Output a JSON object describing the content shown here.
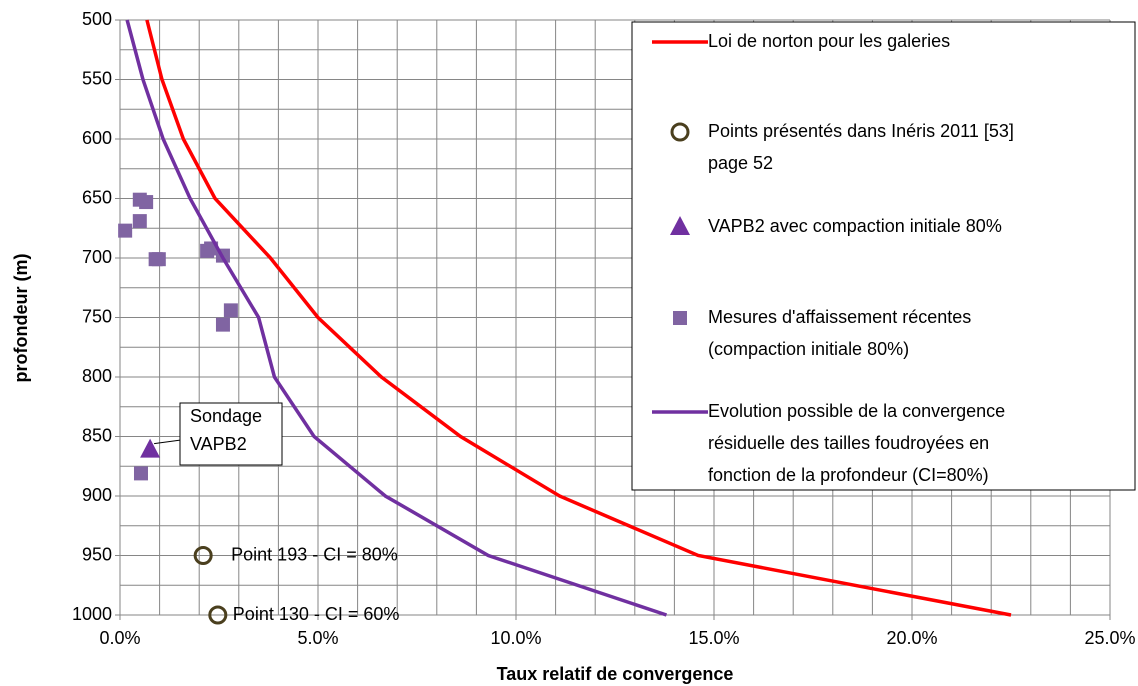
{
  "chart_data": {
    "type": "scatter",
    "xlabel": "Taux relatif de convergence",
    "ylabel": "profondeur (m)",
    "xlim": [
      0,
      25
    ],
    "ylim": [
      500,
      1000
    ],
    "y_inverted": true,
    "xticks": [
      {
        "value": 0,
        "label": "0.0%"
      },
      {
        "value": 5,
        "label": "5.0%"
      },
      {
        "value": 10,
        "label": "10.0%"
      },
      {
        "value": 15,
        "label": "15.0%"
      },
      {
        "value": 20,
        "label": "20.0%"
      },
      {
        "value": 25,
        "label": "25.0%"
      }
    ],
    "yticks": [
      500,
      550,
      600,
      650,
      700,
      750,
      800,
      850,
      900,
      950,
      1000
    ],
    "x_minor_ticks": [
      1,
      2,
      3,
      4,
      6,
      7,
      8,
      9,
      11,
      12,
      13,
      14,
      16,
      17,
      18,
      19,
      21,
      22,
      23,
      24
    ],
    "y_minor_ticks": [
      525,
      575,
      625,
      675,
      725,
      775,
      825,
      875,
      925,
      975
    ],
    "grid": true,
    "legend": "right",
    "series": [
      {
        "name": "Loi de norton pour les galeries",
        "kind": "line",
        "color": "#ff0000",
        "x": [
          0.68,
          1.06,
          1.6,
          2.4,
          3.8,
          5.0,
          6.6,
          8.6,
          11.1,
          14.6,
          22.5
        ],
        "values": [
          500,
          550,
          600,
          650,
          700,
          750,
          800,
          850,
          900,
          950,
          1000
        ]
      },
      {
        "name": "Points présentés dans Inéris 2011 [53]\npage 52",
        "kind": "scatter",
        "marker": "circle",
        "color": "#4a3f1e",
        "x": [
          2.1,
          2.47
        ],
        "values": [
          950,
          1000
        ]
      },
      {
        "name": "VAPB2 avec compaction initiale 80%",
        "kind": "scatter",
        "marker": "triangle",
        "color": "#7030a0",
        "x": [
          0.76
        ],
        "values": [
          861
        ]
      },
      {
        "name": "Mesures d'affaissement récentes\n(compaction initiale 80%)",
        "kind": "scatter",
        "marker": "square",
        "color": "#8064a2",
        "x": [
          0.13,
          0.5,
          0.66,
          0.5,
          0.9,
          0.98,
          2.2,
          2.3,
          2.6,
          2.8,
          2.6,
          0.53
        ],
        "values": [
          677,
          651,
          653,
          669,
          701,
          701,
          694,
          692,
          698,
          744,
          756,
          881
        ]
      },
      {
        "name": "Evolution possible de la convergence\nrésiduelle des tailles foudroyées  en\nfonction de la profondeur (CI=80%)",
        "kind": "line",
        "color": "#7030a0",
        "x": [
          0.18,
          0.58,
          1.09,
          1.77,
          2.6,
          3.5,
          3.9,
          4.9,
          6.7,
          9.3,
          13.8
        ],
        "values": [
          500,
          550,
          600,
          650,
          700,
          750,
          800,
          850,
          900,
          950,
          1000
        ]
      }
    ],
    "annotations": [
      {
        "text": "Point 193 - CI = 80%"
      },
      {
        "text": "Point 130 - CI = 60%"
      },
      {
        "text": "Sondage\nVAPB2"
      }
    ]
  }
}
